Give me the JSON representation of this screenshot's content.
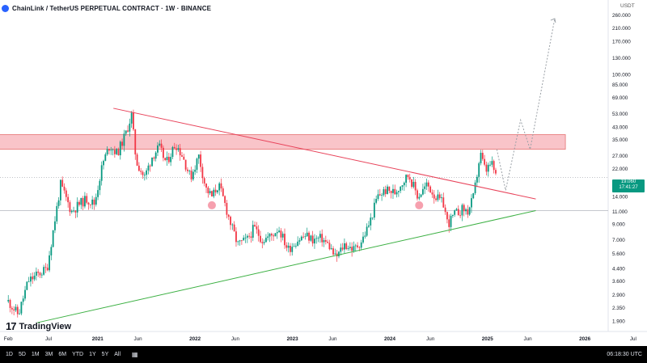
{
  "header": {
    "title": "ChainLink / TetherUS PERPETUAL CONTRACT · 1W · BINANCE"
  },
  "axis": {
    "currency": "USDT"
  },
  "last_price": {
    "value": "19.060",
    "countdown": "17:41:27"
  },
  "watermark": {
    "text": "TradingView"
  },
  "toolbar": {
    "ranges": [
      "1D",
      "5D",
      "1M",
      "3M",
      "6M",
      "YTD",
      "1Y",
      "5Y",
      "All"
    ],
    "calendar_icon": "calendar-icon",
    "clock": "06:18:30 UTC"
  },
  "colors": {
    "up": "#089981",
    "down": "#f23645",
    "resistance_line": "#e8435a",
    "support_line": "#3cb043",
    "zone_fill": "#f9c4c9",
    "projection": "#9aa0a6",
    "circle_marker": "#f48fa0"
  },
  "chart_data": {
    "type": "candlestick",
    "symbol": "ChainLink / TetherUS PERPETUAL CONTRACT",
    "interval": "1W",
    "exchange": "BINANCE",
    "y_scale": "log",
    "ylim": [
      1.9,
      260
    ],
    "y_ticks": [
      "260.000",
      "210.000",
      "170.000",
      "130.000",
      "100.000",
      "85.000",
      "69.000",
      "53.000",
      "43.000",
      "35.000",
      "27.000",
      "22.000",
      "14.000",
      "11.000",
      "9.000",
      "7.000",
      "5.600",
      "4.400",
      "3.600",
      "2.900",
      "2.350",
      "1.900"
    ],
    "y_tick_values": [
      260,
      210,
      170,
      130,
      100,
      85,
      69,
      53,
      43,
      35,
      27,
      22,
      14,
      11,
      9,
      7,
      5.6,
      4.4,
      3.6,
      2.9,
      2.35,
      1.9
    ],
    "x_ticks": [
      "Feb",
      "Jul",
      "2021",
      "Jun",
      "2022",
      "Jun",
      "2023",
      "Jun",
      "2024",
      "Jun",
      "2025",
      "Jun",
      "2026",
      "Jul"
    ],
    "x_tick_dates": [
      "2020-02-01",
      "2020-07-01",
      "2021-01-01",
      "2021-06-01",
      "2022-01-01",
      "2022-06-01",
      "2023-01-01",
      "2023-06-01",
      "2024-01-01",
      "2024-06-01",
      "2025-01-01",
      "2025-06-01",
      "2026-01-01",
      "2026-07-01"
    ],
    "price_path": [
      [
        "2020-02-01",
        2.6
      ],
      [
        "2020-03-10",
        2.1
      ],
      [
        "2020-04-15",
        3.6
      ],
      [
        "2020-05-20",
        4.0
      ],
      [
        "2020-06-25",
        4.4
      ],
      [
        "2020-07-20",
        8.5
      ],
      [
        "2020-08-15",
        17
      ],
      [
        "2020-09-25",
        11
      ],
      [
        "2020-10-25",
        12.5
      ],
      [
        "2020-11-20",
        13.5
      ],
      [
        "2020-12-20",
        12.5
      ],
      [
        "2021-01-20",
        24
      ],
      [
        "2021-02-15",
        32
      ],
      [
        "2021-03-15",
        28
      ],
      [
        "2021-04-15",
        38
      ],
      [
        "2021-05-08",
        52
      ],
      [
        "2021-05-25",
        25
      ],
      [
        "2021-06-25",
        19
      ],
      [
        "2021-07-25",
        27
      ],
      [
        "2021-08-20",
        31
      ],
      [
        "2021-09-15",
        24
      ],
      [
        "2021-10-20",
        33
      ],
      [
        "2021-11-15",
        27
      ],
      [
        "2021-12-15",
        19
      ],
      [
        "2022-01-15",
        27
      ],
      [
        "2022-02-10",
        16
      ],
      [
        "2022-03-05",
        14
      ],
      [
        "2022-03-30",
        17
      ],
      [
        "2022-04-20",
        13
      ],
      [
        "2022-05-15",
        9
      ],
      [
        "2022-06-10",
        6.5
      ],
      [
        "2022-07-15",
        7
      ],
      [
        "2022-08-10",
        8.5
      ],
      [
        "2022-09-10",
        7
      ],
      [
        "2022-10-15",
        7.5
      ],
      [
        "2022-11-10",
        8.5
      ],
      [
        "2022-12-15",
        6
      ],
      [
        "2023-01-20",
        7
      ],
      [
        "2023-02-20",
        7.5
      ],
      [
        "2023-03-20",
        7
      ],
      [
        "2023-04-20",
        7.2
      ],
      [
        "2023-05-20",
        6.3
      ],
      [
        "2023-06-12",
        5.2
      ],
      [
        "2023-07-15",
        6.5
      ],
      [
        "2023-08-20",
        6
      ],
      [
        "2023-09-20",
        7
      ],
      [
        "2023-10-20",
        9.5
      ],
      [
        "2023-11-15",
        14
      ],
      [
        "2023-12-15",
        15.5
      ],
      [
        "2024-01-20",
        15
      ],
      [
        "2024-02-20",
        18
      ],
      [
        "2024-03-12",
        20
      ],
      [
        "2024-04-15",
        14
      ],
      [
        "2024-05-20",
        17
      ],
      [
        "2024-06-20",
        14
      ],
      [
        "2024-07-20",
        12.5
      ],
      [
        "2024-08-05",
        9
      ],
      [
        "2024-08-30",
        10.5
      ],
      [
        "2024-09-30",
        11.5
      ],
      [
        "2024-10-20",
        11
      ],
      [
        "2024-11-10",
        14
      ],
      [
        "2024-12-05",
        28
      ],
      [
        "2024-12-25",
        21
      ],
      [
        "2025-01-15",
        24
      ],
      [
        "2025-02-05",
        19
      ]
    ],
    "annotations": {
      "resistance_zone": {
        "low": 30,
        "high": 38,
        "from": "2019-12-01",
        "to": "2025-10-20"
      },
      "descending_trendline": [
        [
          "2021-03-01",
          58
        ],
        [
          "2025-07-01",
          13.5
        ]
      ],
      "ascending_trendline": [
        [
          "2020-05-20",
          1.85
        ],
        [
          "2025-07-01",
          11.2
        ]
      ],
      "horizontal_line": 11.2,
      "projection_path": [
        [
          "2025-02-05",
          30
        ],
        [
          "2025-03-10",
          15.5
        ],
        [
          "2025-05-05",
          48
        ],
        [
          "2025-06-10",
          30
        ],
        [
          "2025-09-10",
          245
        ]
      ],
      "circles": [
        [
          "2022-03-05",
          12.2
        ],
        [
          "2024-04-20",
          12.2
        ]
      ]
    }
  }
}
